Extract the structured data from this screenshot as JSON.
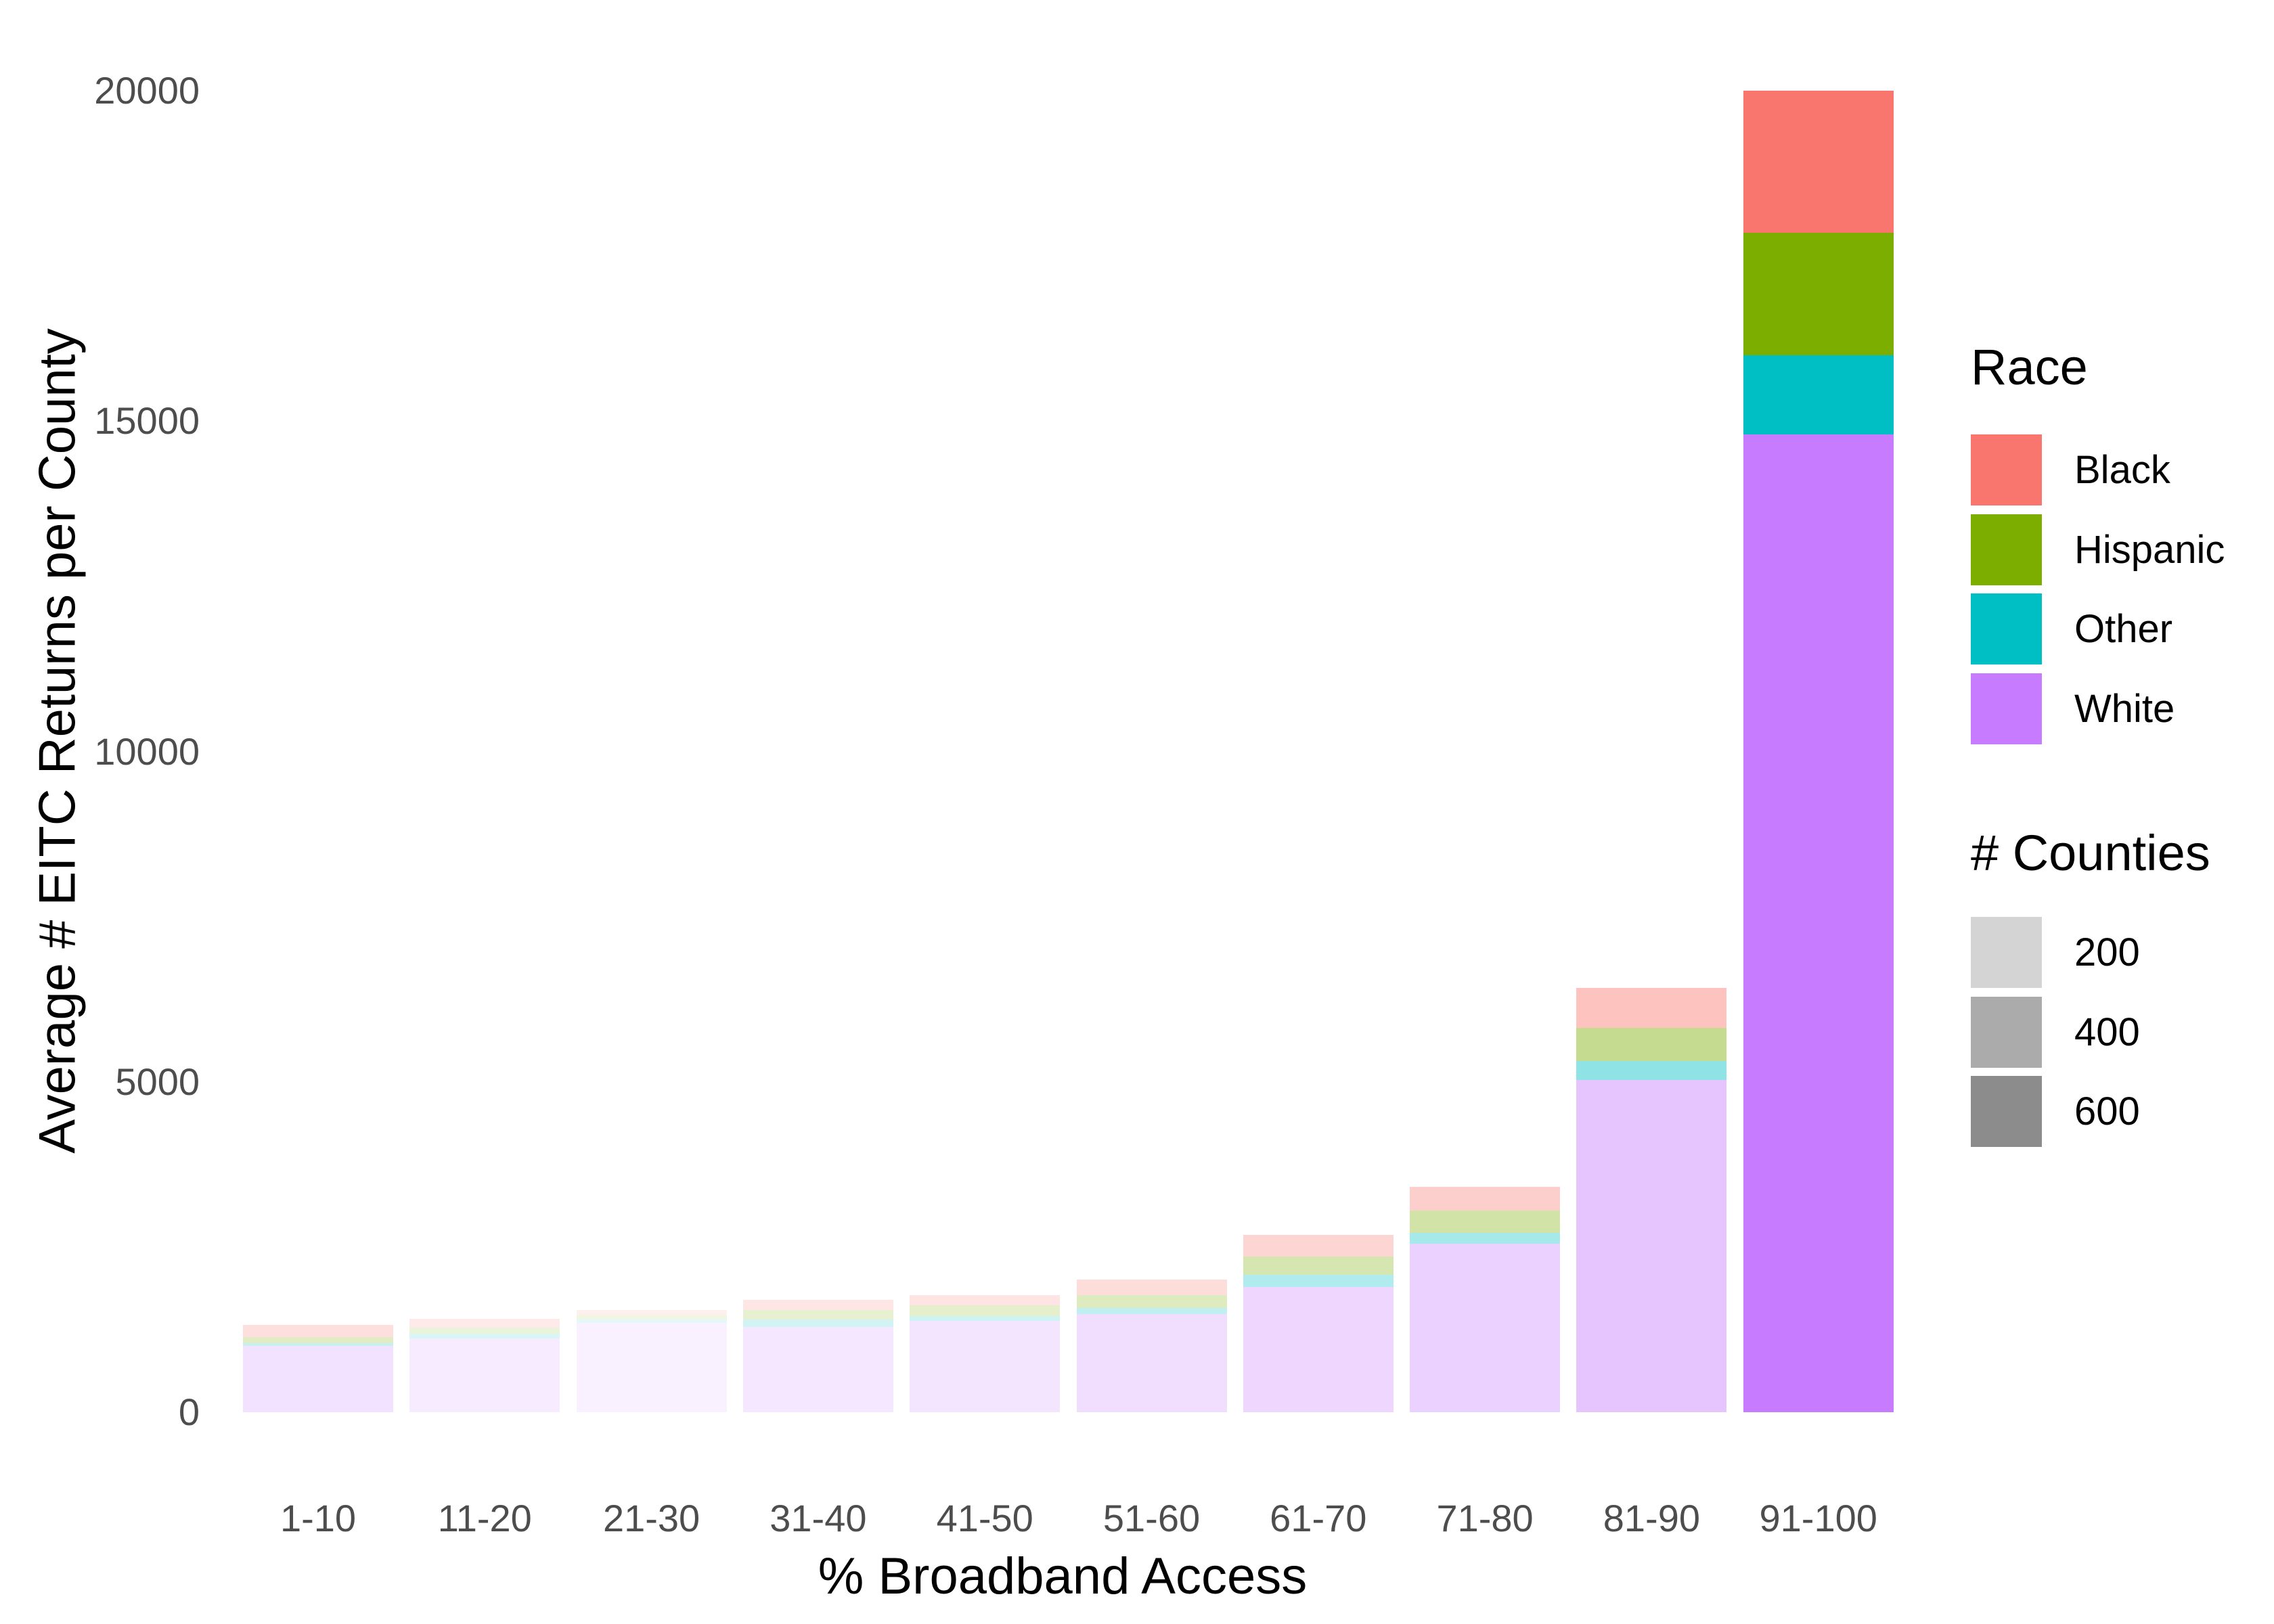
{
  "styles": {
    "background": "#FFFFFF",
    "tick_label_color": "#4D4D4D",
    "axis_title_color": "#000000"
  },
  "y_axis": {
    "title": "Average # EITC Returns per County",
    "tick_labels": [
      "0",
      "5000",
      "10000",
      "15000",
      "20000"
    ]
  },
  "x_axis": {
    "title": "% Broadband Access",
    "tick_labels": [
      "1-10",
      "11-20",
      "21-30",
      "31-40",
      "41-50",
      "51-60",
      "61-70",
      "71-80",
      "81-90",
      "91-100"
    ]
  },
  "legend_race": {
    "title": "Race",
    "items": [
      {
        "label": "Black",
        "color": "#F8766D"
      },
      {
        "label": "Hispanic",
        "color": "#7CAE00"
      },
      {
        "label": "Other",
        "color": "#00BFC4"
      },
      {
        "label": "White",
        "color": "#C77CFF"
      }
    ]
  },
  "legend_counties": {
    "title": "# Counties",
    "items": [
      {
        "label": "200",
        "color": "#D4D4D4"
      },
      {
        "label": "400",
        "color": "#ABABAB"
      },
      {
        "label": "600",
        "color": "#8C8C8C"
      }
    ]
  },
  "chart_data": {
    "type": "bar",
    "subtype": "stacked",
    "title": "",
    "xlabel": "% Broadband Access",
    "ylabel": "Average # EITC Returns per County",
    "categories": [
      "1-10",
      "11-20",
      "21-30",
      "31-40",
      "41-50",
      "51-60",
      "61-70",
      "71-80",
      "81-90",
      "91-100"
    ],
    "ylim": [
      0,
      20000
    ],
    "yticks": [
      0,
      5000,
      10000,
      15000,
      20000
    ],
    "grid": "none",
    "legend_position": "right",
    "stack_order_bottom_to_top": [
      "White",
      "Other",
      "Hispanic",
      "Black"
    ],
    "series": [
      {
        "name": "Black",
        "color": "#F8766D",
        "values": [
          185,
          125,
          70,
          150,
          150,
          240,
          320,
          360,
          600,
          2150
        ]
      },
      {
        "name": "Hispanic",
        "color": "#7CAE00",
        "values": [
          90,
          95,
          75,
          150,
          170,
          190,
          280,
          340,
          510,
          1850
        ]
      },
      {
        "name": "Other",
        "color": "#00BFC4",
        "values": [
          40,
          70,
          55,
          105,
          70,
          100,
          190,
          160,
          280,
          1200
        ]
      },
      {
        "name": "White",
        "color": "#C77CFF",
        "values": [
          1005,
          1120,
          1350,
          1295,
          1380,
          1480,
          1890,
          2550,
          5030,
          14800
        ]
      }
    ],
    "bar_totals": [
      1320,
      1410,
      1550,
      1700,
      1770,
      2010,
      2680,
      3410,
      6420,
      20000
    ],
    "bar_opacity_from_county_count": [
      0.23,
      0.15,
      0.11,
      0.18,
      0.2,
      0.25,
      0.31,
      0.35,
      0.44,
      1.0
    ]
  }
}
